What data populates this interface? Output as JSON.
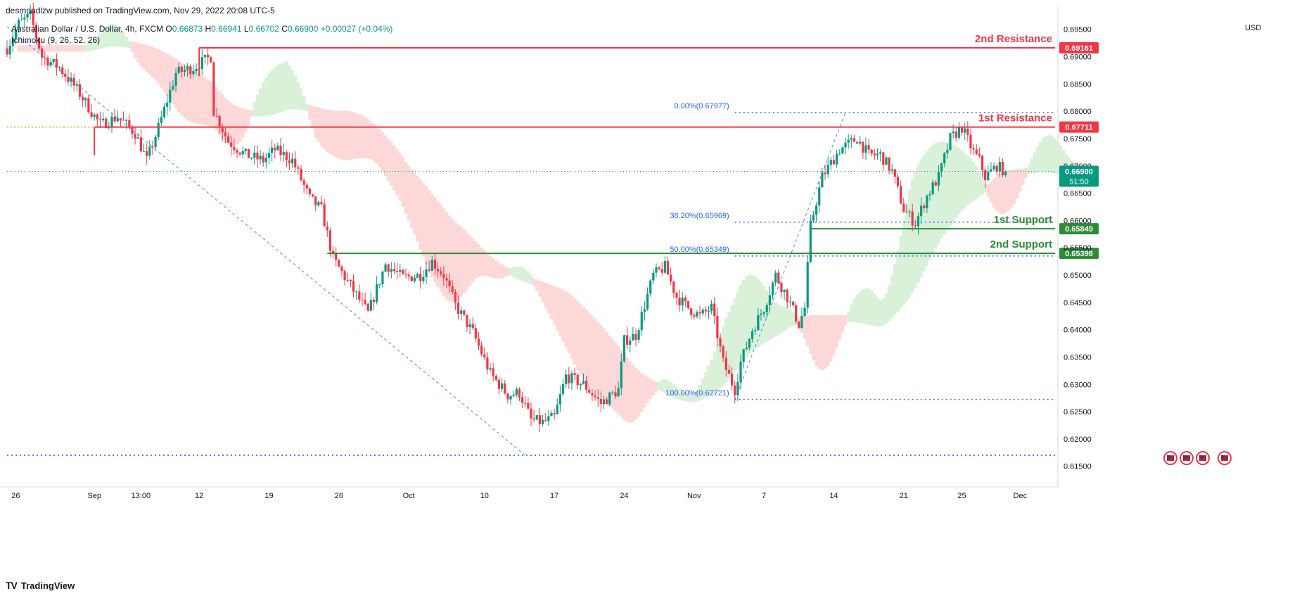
{
  "header": {
    "published": "desmondlzw published on TradingView.com, Nov 29, 2022 20:08 UTC-5"
  },
  "legend": {
    "symbol": "Australian Dollar / U.S. Dollar, 4h, FXCM",
    "ohlc": [
      {
        "label": "O",
        "value": "0.66873"
      },
      {
        "label": "H",
        "value": "0.66941"
      },
      {
        "label": "L",
        "value": "0.66702"
      },
      {
        "label": "C",
        "value": "0.66900"
      }
    ],
    "change": "+0.00027 (+0.04%)",
    "indicator": "Ichimoku (9, 26, 52, 26)"
  },
  "currency": "USD",
  "footer": {
    "logo": "TV",
    "brand": "TradingView"
  },
  "colors": {
    "up": "#089981",
    "down": "#f23645",
    "resistance": "#f23645",
    "support": "#2e8b35",
    "fib": "#2962ff",
    "cloud_bull": "#d7efd7",
    "cloud_bear": "#fdd6d6",
    "current_price_bg": "#089981"
  },
  "chart_data": {
    "type": "candlestick",
    "symbol": "AUD/USD",
    "timeframe": "4h",
    "y_axis": {
      "ticks": [
        "0.69500",
        "0.69000",
        "0.68500",
        "0.68000",
        "0.67500",
        "0.67000",
        "0.66500",
        "0.66000",
        "0.65500",
        "0.65000",
        "0.64500",
        "0.64000",
        "0.63500",
        "0.63000",
        "0.62500",
        "0.62000",
        "0.61500"
      ],
      "range": [
        0.6138,
        0.6978
      ]
    },
    "x_axis": {
      "ticks": [
        {
          "label": "26",
          "idx": 3
        },
        {
          "label": "Sep",
          "idx": 30
        },
        {
          "label": "13:00",
          "idx": 46
        },
        {
          "label": "12",
          "idx": 66
        },
        {
          "label": "19",
          "idx": 90
        },
        {
          "label": "26",
          "idx": 114
        },
        {
          "label": "Oct",
          "idx": 138
        },
        {
          "label": "10",
          "idx": 164
        },
        {
          "label": "17",
          "idx": 188
        },
        {
          "label": "24",
          "idx": 212
        },
        {
          "label": "Nov",
          "idx": 236
        },
        {
          "label": "7",
          "idx": 260
        },
        {
          "label": "14",
          "idx": 284
        },
        {
          "label": "21",
          "idx": 308
        },
        {
          "label": "25",
          "idx": 328
        },
        {
          "label": "Dec",
          "idx": 348
        }
      ],
      "range": [
        0,
        360
      ]
    },
    "price_path": [
      [
        0,
        0.6915
      ],
      [
        4,
        0.696
      ],
      [
        8,
        0.6975
      ],
      [
        12,
        0.69
      ],
      [
        18,
        0.688
      ],
      [
        24,
        0.684
      ],
      [
        32,
        0.6775
      ],
      [
        38,
        0.679
      ],
      [
        44,
        0.676
      ],
      [
        48,
        0.671
      ],
      [
        52,
        0.677
      ],
      [
        58,
        0.687
      ],
      [
        64,
        0.688
      ],
      [
        70,
        0.69
      ],
      [
        71,
        0.68
      ],
      [
        76,
        0.6745
      ],
      [
        82,
        0.672
      ],
      [
        88,
        0.671
      ],
      [
        92,
        0.673
      ],
      [
        98,
        0.671
      ],
      [
        104,
        0.664
      ],
      [
        108,
        0.662
      ],
      [
        112,
        0.653
      ],
      [
        118,
        0.648
      ],
      [
        124,
        0.643
      ],
      [
        130,
        0.652
      ],
      [
        136,
        0.6495
      ],
      [
        142,
        0.65
      ],
      [
        146,
        0.6525
      ],
      [
        150,
        0.65
      ],
      [
        154,
        0.6445
      ],
      [
        160,
        0.6395
      ],
      [
        166,
        0.632
      ],
      [
        172,
        0.628
      ],
      [
        176,
        0.6285
      ],
      [
        180,
        0.6235
      ],
      [
        184,
        0.623
      ],
      [
        188,
        0.624
      ],
      [
        192,
        0.6315
      ],
      [
        198,
        0.63
      ],
      [
        204,
        0.6265
      ],
      [
        210,
        0.629
      ],
      [
        212,
        0.638
      ],
      [
        216,
        0.639
      ],
      [
        222,
        0.65
      ],
      [
        226,
        0.6515
      ],
      [
        230,
        0.646
      ],
      [
        234,
        0.644
      ],
      [
        238,
        0.6425
      ],
      [
        242,
        0.644
      ],
      [
        246,
        0.634
      ],
      [
        250,
        0.629
      ],
      [
        252,
        0.634
      ],
      [
        256,
        0.64
      ],
      [
        260,
        0.644
      ],
      [
        264,
        0.65
      ],
      [
        268,
        0.646
      ],
      [
        272,
        0.641
      ],
      [
        274,
        0.644
      ],
      [
        276,
        0.659
      ],
      [
        280,
        0.668
      ],
      [
        286,
        0.673
      ],
      [
        292,
        0.675
      ],
      [
        296,
        0.672
      ],
      [
        300,
        0.672
      ],
      [
        304,
        0.669
      ],
      [
        308,
        0.662
      ],
      [
        312,
        0.6595
      ],
      [
        316,
        0.6645
      ],
      [
        320,
        0.668
      ],
      [
        324,
        0.675
      ],
      [
        328,
        0.677
      ],
      [
        332,
        0.6725
      ],
      [
        334,
        0.671
      ],
      [
        336,
        0.668
      ],
      [
        340,
        0.67
      ],
      [
        343,
        0.669
      ]
    ],
    "levels": [
      {
        "name": "2nd Resistance",
        "value": 0.69161,
        "label": "0.69161",
        "kind": "resistance",
        "x_from": 66
      },
      {
        "name": "1st Resistance",
        "value": 0.67711,
        "label": "0.67711",
        "kind": "resistance",
        "x_from": 30
      },
      {
        "name": "1st Support",
        "value": 0.65849,
        "label": "0.65849",
        "kind": "support",
        "x_from": 276
      },
      {
        "name": "2nd Support",
        "value": 0.65398,
        "label": "0.65398",
        "kind": "support",
        "x_from": 110
      }
    ],
    "fibonacci": [
      {
        "level": "0.00%(0.67977)",
        "value": 0.67977
      },
      {
        "level": "38.20%(0.65969)",
        "value": 0.65969
      },
      {
        "level": "50.00%(0.65349)",
        "value": 0.65349
      },
      {
        "level": "100.00%(0.62721)",
        "value": 0.62721
      }
    ],
    "fib_x_from": 250,
    "current_price": {
      "value": 0.669,
      "label": "0.66900",
      "countdown": "51:50"
    },
    "bottom_dotted_level": 0.617,
    "trend_line": [
      [
        0,
        0.6955
      ],
      [
        178,
        0.617
      ]
    ],
    "fib_swing_line": [
      [
        250,
        0.6272
      ],
      [
        288,
        0.6798
      ]
    ]
  }
}
